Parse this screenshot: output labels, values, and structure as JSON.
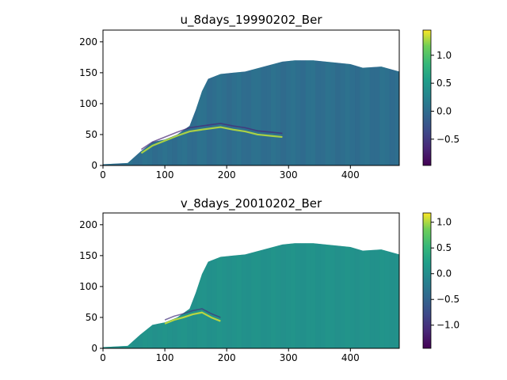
{
  "chart_data": [
    {
      "type": "heatmap",
      "title": "u_8days_19990202_Ber",
      "xlabel": "",
      "ylabel": "",
      "xlim": [
        0,
        479
      ],
      "ylim": [
        0,
        219
      ],
      "x_ticks": [
        0,
        100,
        200,
        300,
        400
      ],
      "y_ticks": [
        0,
        50,
        100,
        150,
        200
      ],
      "x_tick_labels": [
        "0",
        "100",
        "200",
        "300",
        "400"
      ],
      "y_tick_labels": [
        "0",
        "50",
        "100",
        "150",
        "200"
      ],
      "colormap": "viridis",
      "colorbar": {
        "vmin": -0.97,
        "vmax": 1.45,
        "ticks": [
          -0.5,
          0.0,
          0.5,
          1.0
        ],
        "tick_labels": [
          "−0.5",
          "0.0",
          "0.5",
          "1.0"
        ]
      },
      "background_value": 0.02,
      "land_color": "#ffffff",
      "ocean_boundary_y": [
        [
          0,
          2
        ],
        [
          40,
          4
        ],
        [
          60,
          22
        ],
        [
          70,
          30
        ],
        [
          80,
          38
        ],
        [
          90,
          40
        ],
        [
          100,
          42
        ],
        [
          120,
          50
        ],
        [
          140,
          64
        ],
        [
          150,
          90
        ],
        [
          160,
          120
        ],
        [
          170,
          140
        ],
        [
          190,
          148
        ],
        [
          210,
          150
        ],
        [
          230,
          152
        ],
        [
          260,
          160
        ],
        [
          290,
          168
        ],
        [
          310,
          170
        ],
        [
          340,
          170
        ],
        [
          370,
          167
        ],
        [
          400,
          164
        ],
        [
          420,
          158
        ],
        [
          450,
          160
        ],
        [
          479,
          152
        ]
      ],
      "current_jet": [
        [
          62,
          20
        ],
        [
          80,
          32
        ],
        [
          100,
          40
        ],
        [
          120,
          48
        ],
        [
          140,
          55
        ],
        [
          160,
          58
        ],
        [
          175,
          60
        ],
        [
          190,
          62
        ],
        [
          210,
          58
        ],
        [
          230,
          55
        ],
        [
          250,
          50
        ],
        [
          270,
          48
        ],
        [
          290,
          46
        ]
      ],
      "grid": false
    },
    {
      "type": "heatmap",
      "title": "v_8days_20010202_Ber",
      "xlabel": "",
      "ylabel": "",
      "xlim": [
        0,
        479
      ],
      "ylim": [
        0,
        219
      ],
      "x_ticks": [
        0,
        100,
        200,
        300,
        400
      ],
      "y_ticks": [
        0,
        50,
        100,
        150,
        200
      ],
      "x_tick_labels": [
        "0",
        "100",
        "200",
        "300",
        "400"
      ],
      "y_tick_labels": [
        "0",
        "50",
        "100",
        "150",
        "200"
      ],
      "colormap": "viridis",
      "colorbar": {
        "vmin": -1.45,
        "vmax": 1.18,
        "ticks": [
          -1.0,
          -0.5,
          0.0,
          0.5,
          1.0
        ],
        "tick_labels": [
          "−1.0",
          "−0.5",
          "0.0",
          "0.5",
          "1.0"
        ]
      },
      "background_value": 0.05,
      "land_color": "#ffffff",
      "ocean_boundary_y": [
        [
          0,
          2
        ],
        [
          40,
          4
        ],
        [
          60,
          22
        ],
        [
          70,
          30
        ],
        [
          80,
          38
        ],
        [
          90,
          40
        ],
        [
          100,
          42
        ],
        [
          120,
          50
        ],
        [
          140,
          64
        ],
        [
          150,
          90
        ],
        [
          160,
          120
        ],
        [
          170,
          140
        ],
        [
          190,
          148
        ],
        [
          210,
          150
        ],
        [
          230,
          152
        ],
        [
          260,
          160
        ],
        [
          290,
          168
        ],
        [
          310,
          170
        ],
        [
          340,
          170
        ],
        [
          370,
          167
        ],
        [
          400,
          164
        ],
        [
          420,
          158
        ],
        [
          450,
          160
        ],
        [
          479,
          152
        ]
      ],
      "current_jet": [
        [
          100,
          40
        ],
        [
          115,
          46
        ],
        [
          130,
          50
        ],
        [
          145,
          55
        ],
        [
          160,
          58
        ],
        [
          175,
          50
        ],
        [
          190,
          44
        ]
      ],
      "grid": false
    }
  ]
}
